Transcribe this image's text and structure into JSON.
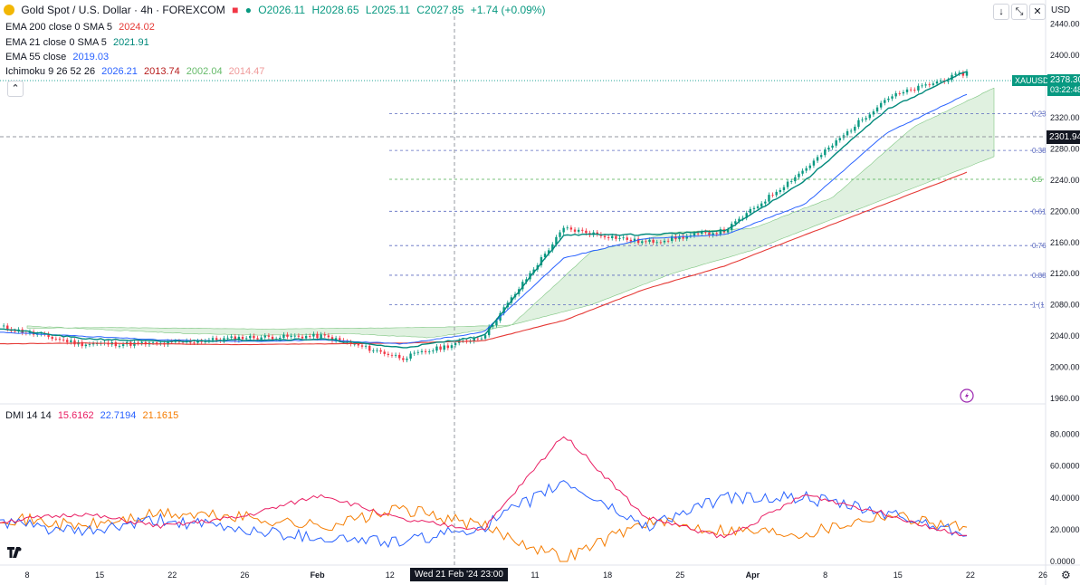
{
  "header": {
    "symbol_title": "Gold Spot / U.S. Dollar · 4h · FOREXCOM",
    "ohlc": {
      "o": "O2026.11",
      "h": "H2028.65",
      "l": "L2025.11",
      "c": "C2027.85",
      "chg": "+1.74 (+0.09%)"
    },
    "currency": "USD"
  },
  "indicators": [
    {
      "label": "EMA 200 close 0 SMA 5",
      "values": [
        "2024.02"
      ],
      "colors": [
        "#e53935"
      ]
    },
    {
      "label": "EMA 21 close 0 SMA 5",
      "values": [
        "2021.91"
      ],
      "colors": [
        "#00897b"
      ]
    },
    {
      "label": "EMA 55 close",
      "values": [
        "2019.03"
      ],
      "colors": [
        "#2962ff"
      ]
    },
    {
      "label": "Ichimoku 9 26 52 26",
      "values": [
        "2026.21",
        "2013.74",
        "2002.04",
        "2014.47"
      ],
      "colors": [
        "#2962ff",
        "#b71c1c",
        "#66bb6a",
        "#ef9a9a"
      ]
    }
  ],
  "dmi": {
    "label": "DMI 14 14",
    "values": [
      "15.6162",
      "22.7194",
      "21.1615"
    ],
    "colors": [
      "#e91e63",
      "#2962ff",
      "#f57c00"
    ]
  },
  "price_axis": {
    "ticks": [
      "2440.00",
      "2400.00",
      "2360.00",
      "2320.00",
      "2280.00",
      "2240.00",
      "2200.00",
      "2160.00",
      "2120.00",
      "2080.00",
      "2040.00",
      "2000.00",
      "1960.00"
    ],
    "last_symbol": "XAUUSD",
    "last_price": "2378.30",
    "countdown": "03:22:48",
    "crosshair_price": "2301.94"
  },
  "dmi_axis": {
    "ticks": [
      "80.0000",
      "60.0000",
      "40.0000",
      "20.0000",
      "0.0000"
    ]
  },
  "time_axis": {
    "ticks": [
      "8",
      "15",
      "22",
      "26",
      "Feb",
      "12",
      "Mar",
      "11",
      "18",
      "25",
      "Apr",
      "8",
      "15",
      "22",
      "26"
    ],
    "crosshair_label": "Wed 21 Feb '24   23:00"
  },
  "fib_levels": [
    "0.23",
    "0.38",
    "0.5",
    "0.61",
    "0.76",
    "0.88",
    "1 (1"
  ],
  "chart_data": [
    {
      "type": "line",
      "title": "Gold Spot / U.S. Dollar · 4h · FOREXCOM",
      "ylim": [
        1960,
        2450
      ],
      "x": [
        "8",
        "15",
        "22",
        "26",
        "Feb",
        "12",
        "Mar",
        "11",
        "18",
        "25",
        "Apr",
        "8",
        "15"
      ],
      "series": [
        {
          "name": "EMA 200",
          "values": [
            2030,
            2031,
            2030,
            2029,
            2030,
            2031,
            2034,
            2060,
            2100,
            2130,
            2170,
            2210,
            2250
          ]
        },
        {
          "name": "EMA 55",
          "values": [
            2045,
            2040,
            2035,
            2033,
            2035,
            2030,
            2045,
            2140,
            2165,
            2170,
            2210,
            2300,
            2350
          ]
        },
        {
          "name": "EMA 21",
          "values": [
            2050,
            2037,
            2033,
            2035,
            2036,
            2025,
            2040,
            2170,
            2170,
            2175,
            2240,
            2330,
            2380
          ]
        },
        {
          "name": "Price",
          "values": [
            2052,
            2030,
            2030,
            2038,
            2040,
            2012,
            2040,
            2178,
            2160,
            2175,
            2255,
            2345,
            2378
          ]
        }
      ],
      "fib_levels": [
        {
          "label": "0.23",
          "price": 2325
        },
        {
          "label": "0.38",
          "price": 2278
        },
        {
          "label": "0.5",
          "price": 2241
        },
        {
          "label": "0.61",
          "price": 2200
        },
        {
          "label": "0.76",
          "price": 2156
        },
        {
          "label": "0.88",
          "price": 2118
        },
        {
          "label": "1 (1",
          "price": 2080
        }
      ]
    },
    {
      "type": "line",
      "title": "DMI 14 14",
      "ylim": [
        0,
        90
      ],
      "x": [
        "8",
        "15",
        "22",
        "26",
        "Feb",
        "12",
        "Mar",
        "11",
        "18",
        "25",
        "Apr",
        "8",
        "15"
      ],
      "series": [
        {
          "name": "ADX",
          "values": [
            25,
            30,
            22,
            28,
            42,
            26,
            20,
            80,
            28,
            15,
            42,
            30,
            15
          ]
        },
        {
          "name": "+DI",
          "values": [
            25,
            18,
            26,
            20,
            15,
            12,
            22,
            50,
            22,
            40,
            40,
            30,
            18
          ]
        },
        {
          "name": "-DI",
          "values": [
            28,
            22,
            30,
            28,
            22,
            33,
            22,
            2,
            25,
            20,
            18,
            30,
            21
          ]
        }
      ]
    }
  ]
}
